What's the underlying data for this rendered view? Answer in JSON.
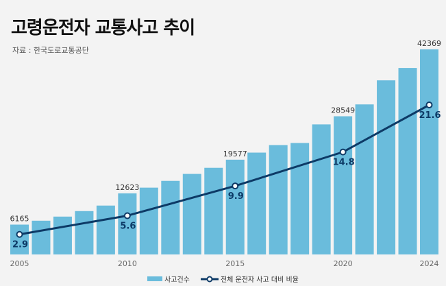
{
  "title": "고령운전자 교통사고 추이",
  "source": "자료 : 한국도로교통공단",
  "colors": {
    "bar": "#6abcdc",
    "line": "#0d3a66",
    "background": "#f3f3f3"
  },
  "chart_data": {
    "type": "bar+line",
    "categories": [
      2005,
      2006,
      2007,
      2008,
      2009,
      2010,
      2011,
      2012,
      2013,
      2014,
      2015,
      2016,
      2017,
      2018,
      2019,
      2020,
      2021,
      2022,
      2023,
      2024
    ],
    "x_tick_labels": [
      "2005",
      "2010",
      "2015",
      "2020",
      "2024"
    ],
    "series": [
      {
        "name": "사고건수",
        "type": "bar",
        "values": [
          6165,
          6970,
          7820,
          8960,
          10100,
          12623,
          13800,
          15200,
          16640,
          17900,
          19577,
          21040,
          22600,
          23030,
          26870,
          28549,
          31000,
          35970,
          38530,
          42369
        ],
        "labeled": {
          "2005": "6165",
          "2010": "12623",
          "2015": "19577",
          "2020": "28549",
          "2024": "42369"
        }
      },
      {
        "name": "전체 운전자 사고 대비 비율",
        "type": "line",
        "x": [
          2005,
          2010,
          2015,
          2020,
          2024
        ],
        "values": [
          2.9,
          5.6,
          9.9,
          14.8,
          21.6
        ],
        "labels": [
          "2.9",
          "5.6",
          "9.9",
          "14.8",
          "21.6"
        ]
      }
    ],
    "ylim_bar": [
      0,
      42369
    ],
    "grid": false,
    "legend": "bottom"
  }
}
